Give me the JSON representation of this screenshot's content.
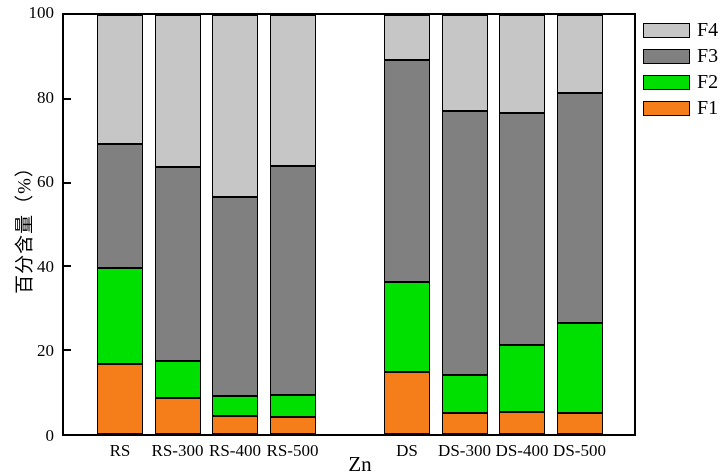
{
  "chart_data": {
    "type": "bar",
    "stacked": true,
    "title": "",
    "xlabel": "Zn",
    "ylabel": "百分含量（%）",
    "ylim": [
      0,
      100
    ],
    "yticks": [
      0,
      20,
      40,
      60,
      80,
      100
    ],
    "grid": false,
    "categories": [
      "RS",
      "RS-300",
      "RS-400",
      "RS-500",
      "DS",
      "DS-300",
      "DS-400",
      "DS-500"
    ],
    "group_split_index": 4,
    "series": [
      {
        "name": "F1",
        "color": "#f57e1a",
        "values": [
          16.8,
          8.5,
          4.2,
          4.0,
          14.7,
          5.0,
          5.3,
          5.0
        ]
      },
      {
        "name": "F2",
        "color": "#00e000",
        "values": [
          22.8,
          8.9,
          4.8,
          5.2,
          21.5,
          9.1,
          15.9,
          21.4
        ]
      },
      {
        "name": "F3",
        "color": "#808080",
        "values": [
          29.5,
          46.3,
          47.6,
          54.8,
          53.0,
          63.1,
          55.5,
          54.9
        ]
      },
      {
        "name": "F4",
        "color": "#c6c6c6",
        "values": [
          30.9,
          36.3,
          43.4,
          36.0,
          10.8,
          22.8,
          23.3,
          18.7
        ]
      }
    ],
    "legend": {
      "position": "top-right-outside",
      "order": [
        "F4",
        "F3",
        "F2",
        "F1"
      ]
    }
  }
}
